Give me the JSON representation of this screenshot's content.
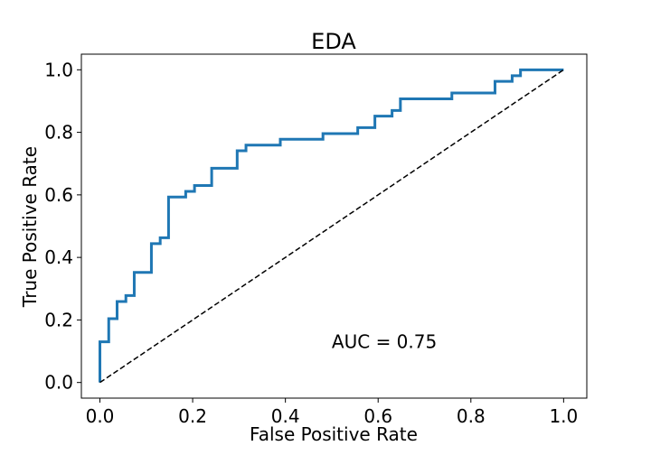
{
  "chart_data": {
    "type": "line",
    "title": "EDA",
    "xlabel": "False Positive Rate",
    "ylabel": "True Positive Rate",
    "xlim": [
      -0.04,
      1.05
    ],
    "ylim": [
      -0.05,
      1.05
    ],
    "xticks": [
      0.0,
      0.2,
      0.4,
      0.6,
      0.8,
      1.0
    ],
    "xtick_labels": [
      "0.0",
      "0.2",
      "0.4",
      "0.6",
      "0.8",
      "1.0"
    ],
    "yticks": [
      0.0,
      0.2,
      0.4,
      0.6,
      0.8,
      1.0
    ],
    "ytick_labels": [
      "0.0",
      "0.2",
      "0.4",
      "0.6",
      "0.8",
      "1.0"
    ],
    "annotation": "AUC = 0.75",
    "annotation_pos": [
      0.5,
      0.11
    ],
    "grid": false,
    "series": [
      {
        "color": "#1f77b4",
        "style": "solid",
        "x": [
          0.0,
          0.0,
          0.019,
          0.019,
          0.037,
          0.037,
          0.056,
          0.056,
          0.074,
          0.074,
          0.111,
          0.111,
          0.13,
          0.13,
          0.148,
          0.148,
          0.185,
          0.185,
          0.204,
          0.204,
          0.241,
          0.241,
          0.296,
          0.296,
          0.315,
          0.315,
          0.389,
          0.389,
          0.481,
          0.481,
          0.556,
          0.556,
          0.593,
          0.593,
          0.63,
          0.63,
          0.648,
          0.648,
          0.759,
          0.759,
          0.852,
          0.852,
          0.889,
          0.889,
          0.907,
          0.907,
          1.0
        ],
        "y": [
          0.0,
          0.13,
          0.13,
          0.204,
          0.204,
          0.259,
          0.259,
          0.278,
          0.278,
          0.352,
          0.352,
          0.444,
          0.444,
          0.463,
          0.463,
          0.593,
          0.593,
          0.611,
          0.611,
          0.63,
          0.63,
          0.685,
          0.685,
          0.741,
          0.741,
          0.759,
          0.759,
          0.778,
          0.778,
          0.796,
          0.796,
          0.815,
          0.815,
          0.852,
          0.852,
          0.87,
          0.87,
          0.907,
          0.907,
          0.926,
          0.926,
          0.963,
          0.963,
          0.981,
          0.981,
          1.0,
          1.0
        ]
      },
      {
        "color": "#000000",
        "style": "dashed",
        "x": [
          0.0,
          1.0
        ],
        "y": [
          0.0,
          1.0
        ]
      }
    ]
  }
}
